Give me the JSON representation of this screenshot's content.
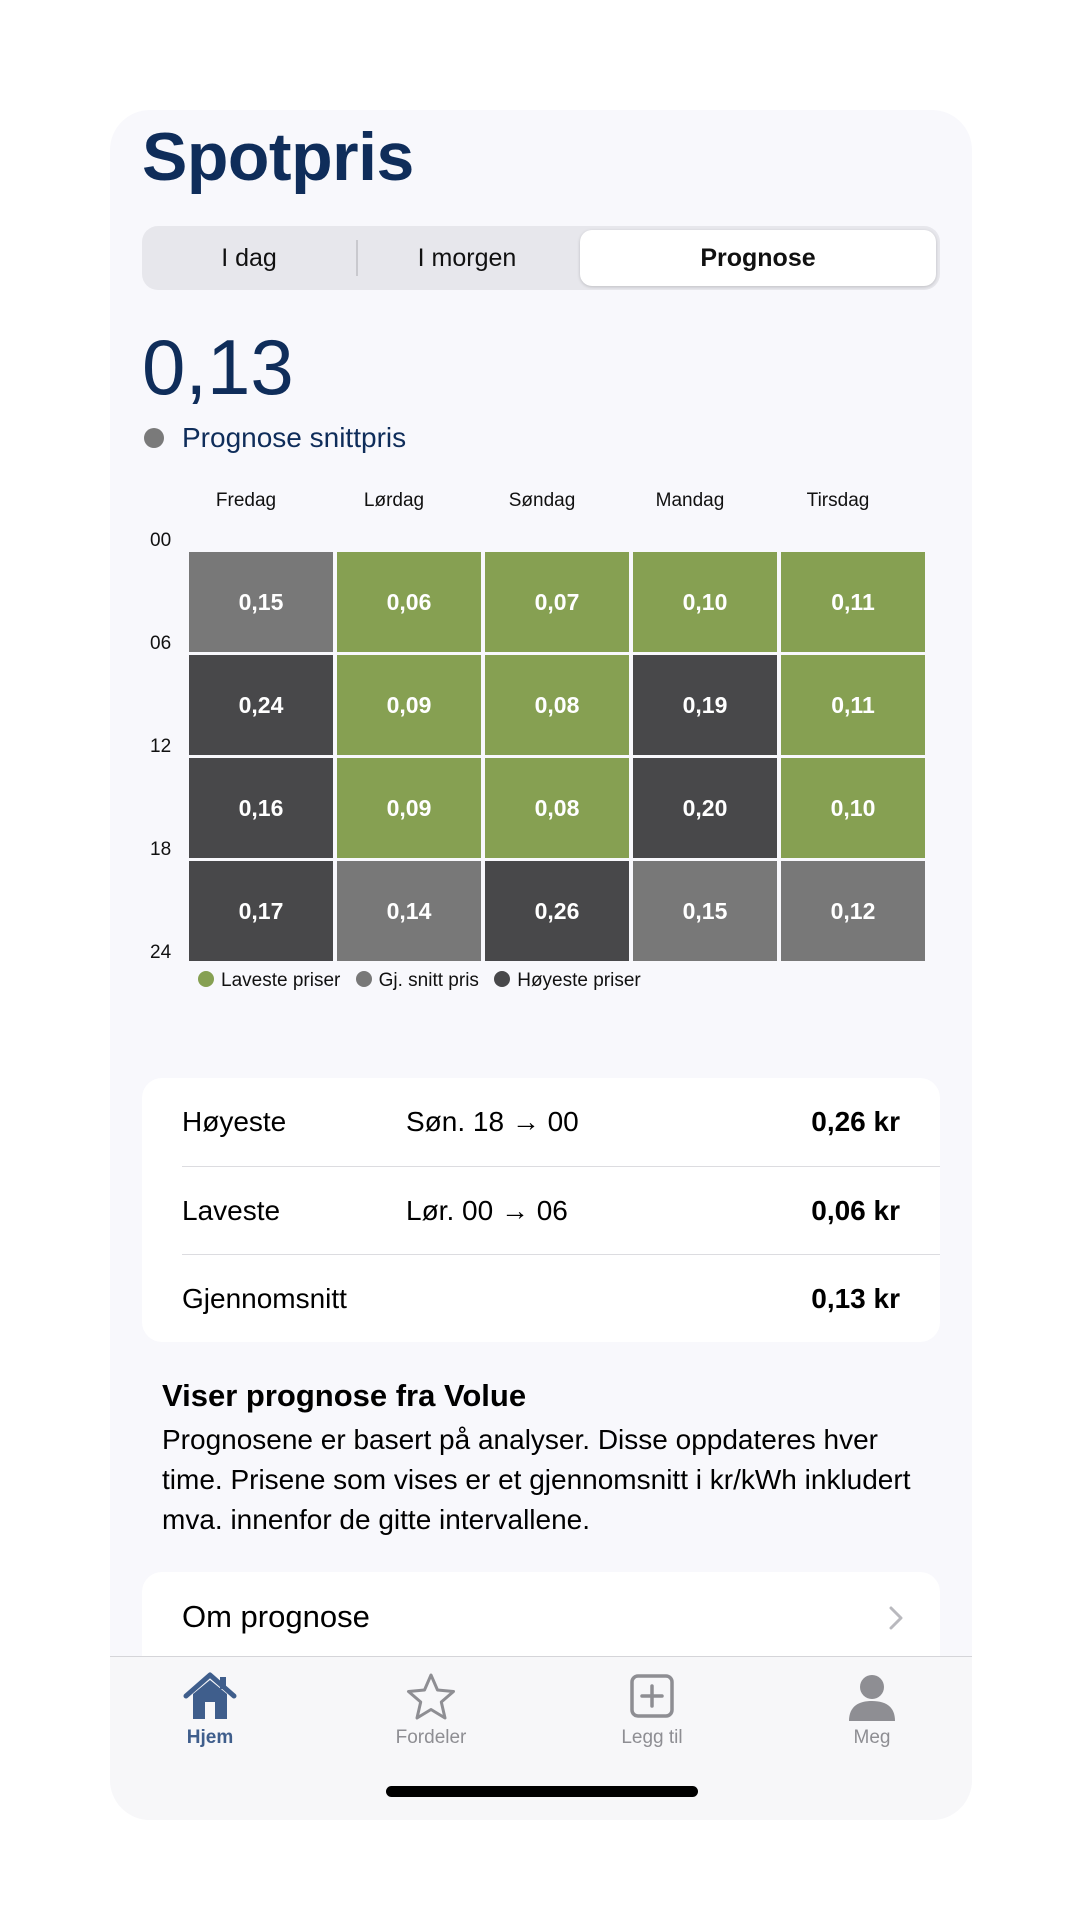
{
  "header": {
    "title": "Spotpris"
  },
  "segments": [
    {
      "label": "I dag",
      "active": false
    },
    {
      "label": "I morgen",
      "active": false
    },
    {
      "label": "Prognose",
      "active": true
    }
  ],
  "summary": {
    "price": "0,13",
    "legend_label": "Prognose snittpris"
  },
  "heatmap": {
    "days": [
      "Fredag",
      "Lørdag",
      "Søndag",
      "Mandag",
      "Tirsdag"
    ],
    "hours": [
      "00",
      "06",
      "12",
      "18",
      "24"
    ],
    "rows": [
      [
        {
          "value": "0,15",
          "level": "avg"
        },
        {
          "value": "0,06",
          "level": "low"
        },
        {
          "value": "0,07",
          "level": "low"
        },
        {
          "value": "0,10",
          "level": "low"
        },
        {
          "value": "0,11",
          "level": "low"
        }
      ],
      [
        {
          "value": "0,24",
          "level": "high"
        },
        {
          "value": "0,09",
          "level": "low"
        },
        {
          "value": "0,08",
          "level": "low"
        },
        {
          "value": "0,19",
          "level": "high"
        },
        {
          "value": "0,11",
          "level": "low"
        }
      ],
      [
        {
          "value": "0,16",
          "level": "high"
        },
        {
          "value": "0,09",
          "level": "low"
        },
        {
          "value": "0,08",
          "level": "low"
        },
        {
          "value": "0,20",
          "level": "high"
        },
        {
          "value": "0,10",
          "level": "low"
        }
      ],
      [
        {
          "value": "0,17",
          "level": "high"
        },
        {
          "value": "0,14",
          "level": "avg"
        },
        {
          "value": "0,26",
          "level": "high"
        },
        {
          "value": "0,15",
          "level": "avg"
        },
        {
          "value": "0,12",
          "level": "avg"
        }
      ]
    ],
    "legend": [
      {
        "label": "Laveste priser",
        "color": "#86a052"
      },
      {
        "label": "Gj. snitt pris",
        "color": "#787878"
      },
      {
        "label": "Høyeste priser",
        "color": "#48484a"
      }
    ]
  },
  "stats": [
    {
      "label": "Høyeste",
      "period": "Søn. 18 → 00",
      "value": "0,26 kr"
    },
    {
      "label": "Laveste",
      "period": "Lør. 00 → 06",
      "value": "0,06 kr"
    },
    {
      "label": "Gjennomsnitt",
      "period": "",
      "value": "0,13 kr"
    }
  ],
  "info": {
    "title": "Viser prognose fra Volue",
    "body": "Prognosene er basert på analyser. Disse oppdateres hver time. Prisene som vises er et gjennomsnitt i kr/kWh inkludert mva. innenfor de gitte intervallene."
  },
  "about": {
    "label": "Om prognose",
    "icon": "chevron-right-icon"
  },
  "tabs": [
    {
      "label": "Hjem",
      "icon": "home-icon",
      "active": true
    },
    {
      "label": "Fordeler",
      "icon": "star-icon",
      "active": false
    },
    {
      "label": "Legg til",
      "icon": "plus-square-icon",
      "active": false
    },
    {
      "label": "Meg",
      "icon": "person-icon",
      "active": false
    }
  ],
  "colors": {
    "accent": "#0f2d5a",
    "tab_active": "#3f5e8c",
    "tab_inactive": "#8e8e93"
  }
}
